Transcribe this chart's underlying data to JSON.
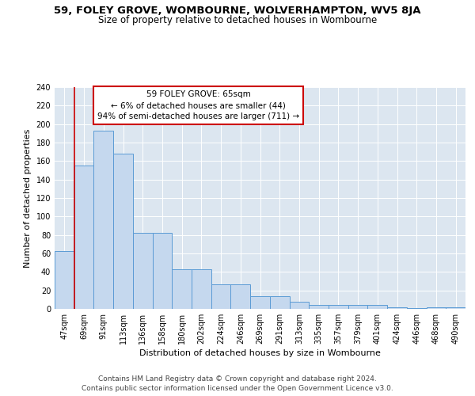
{
  "title1": "59, FOLEY GROVE, WOMBOURNE, WOLVERHAMPTON, WV5 8JA",
  "title2": "Size of property relative to detached houses in Wombourne",
  "xlabel": "Distribution of detached houses by size in Wombourne",
  "ylabel": "Number of detached properties",
  "categories": [
    "47sqm",
    "69sqm",
    "91sqm",
    "113sqm",
    "136sqm",
    "158sqm",
    "180sqm",
    "202sqm",
    "224sqm",
    "246sqm",
    "269sqm",
    "291sqm",
    "313sqm",
    "335sqm",
    "357sqm",
    "379sqm",
    "401sqm",
    "424sqm",
    "446sqm",
    "468sqm",
    "490sqm"
  ],
  "values": [
    63,
    155,
    193,
    168,
    82,
    82,
    43,
    43,
    27,
    27,
    14,
    14,
    8,
    4,
    4,
    4,
    4,
    2,
    1,
    2,
    2
  ],
  "bar_color": "#c5d8ee",
  "bar_edge_color": "#5b9bd5",
  "highlight_color": "#cc0000",
  "annotation_text": "59 FOLEY GROVE: 65sqm\n← 6% of detached houses are smaller (44)\n94% of semi-detached houses are larger (711) →",
  "annotation_box_color": "#ffffff",
  "annotation_box_edge": "#cc0000",
  "ylim": [
    0,
    240
  ],
  "yticks": [
    0,
    20,
    40,
    60,
    80,
    100,
    120,
    140,
    160,
    180,
    200,
    220,
    240
  ],
  "background_color": "#dce6f0",
  "grid_color": "#ffffff",
  "footer": "Contains HM Land Registry data © Crown copyright and database right 2024.\nContains public sector information licensed under the Open Government Licence v3.0.",
  "title1_fontsize": 9.5,
  "title2_fontsize": 8.5,
  "xlabel_fontsize": 8,
  "ylabel_fontsize": 8,
  "tick_fontsize": 7,
  "footer_fontsize": 6.5,
  "ann_fontsize": 7.5
}
